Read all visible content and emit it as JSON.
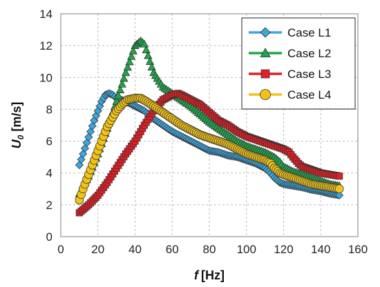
{
  "chart_data": {
    "type": "line",
    "xlabel_var": "f",
    "xlabel_unit": "[Hz]",
    "ylabel_var": "U",
    "ylabel_sub": "0",
    "ylabel_unit": "[m/s]",
    "xlim": [
      0,
      160
    ],
    "ylim": [
      0,
      14
    ],
    "x_ticks": [
      "0",
      "20",
      "40",
      "60",
      "80",
      "100",
      "120",
      "140",
      "160"
    ],
    "y_ticks": [
      "0",
      "2",
      "4",
      "6",
      "8",
      "10",
      "12",
      "14"
    ],
    "grid": true,
    "legend_position": "top-right",
    "series": [
      {
        "name": "Case L1",
        "color": "#3BA7DF",
        "marker": "diamond",
        "points": [
          [
            10,
            4.5
          ],
          [
            12,
            5.2
          ],
          [
            14,
            5.9
          ],
          [
            16,
            6.6
          ],
          [
            18,
            7.3
          ],
          [
            20,
            7.9
          ],
          [
            22,
            8.5
          ],
          [
            24,
            8.9
          ],
          [
            26,
            9.0
          ],
          [
            28,
            8.9
          ],
          [
            30,
            8.7
          ],
          [
            35,
            8.5
          ],
          [
            40,
            8.2
          ],
          [
            45,
            7.9
          ],
          [
            50,
            7.4
          ],
          [
            55,
            7.0
          ],
          [
            60,
            6.6
          ],
          [
            65,
            6.3
          ],
          [
            70,
            6.0
          ],
          [
            75,
            5.7
          ],
          [
            80,
            5.4
          ],
          [
            85,
            5.3
          ],
          [
            90,
            5.1
          ],
          [
            95,
            5.0
          ],
          [
            100,
            4.8
          ],
          [
            105,
            4.6
          ],
          [
            110,
            4.3
          ],
          [
            112,
            4.1
          ],
          [
            115,
            3.7
          ],
          [
            118,
            3.4
          ],
          [
            120,
            3.3
          ],
          [
            125,
            3.2
          ],
          [
            130,
            3.1
          ],
          [
            135,
            2.95
          ],
          [
            140,
            2.85
          ],
          [
            145,
            2.7
          ],
          [
            150,
            2.6
          ]
        ]
      },
      {
        "name": "Case L2",
        "color": "#1FA64A",
        "marker": "triangle",
        "points": [
          [
            10,
            2.7
          ],
          [
            15,
            3.8
          ],
          [
            20,
            5.2
          ],
          [
            25,
            6.8
          ],
          [
            30,
            8.5
          ],
          [
            35,
            10.3
          ],
          [
            40,
            12.0
          ],
          [
            43,
            12.3
          ],
          [
            45,
            12.1
          ],
          [
            48,
            11.0
          ],
          [
            50,
            10.3
          ],
          [
            55,
            9.4
          ],
          [
            60,
            9.0
          ],
          [
            65,
            8.6
          ],
          [
            70,
            8.2
          ],
          [
            75,
            7.7
          ],
          [
            80,
            7.2
          ],
          [
            85,
            6.8
          ],
          [
            90,
            6.4
          ],
          [
            95,
            6.0
          ],
          [
            100,
            5.7
          ],
          [
            105,
            5.5
          ],
          [
            110,
            5.3
          ],
          [
            115,
            5.0
          ],
          [
            118,
            4.7
          ],
          [
            120,
            4.4
          ],
          [
            125,
            4.1
          ],
          [
            130,
            3.9
          ],
          [
            135,
            3.7
          ],
          [
            140,
            3.5
          ],
          [
            145,
            3.3
          ],
          [
            150,
            3.2
          ]
        ]
      },
      {
        "name": "Case L3",
        "color": "#E31E24",
        "marker": "square",
        "points": [
          [
            10,
            1.5
          ],
          [
            15,
            2.0
          ],
          [
            20,
            2.6
          ],
          [
            25,
            3.4
          ],
          [
            30,
            4.3
          ],
          [
            35,
            5.2
          ],
          [
            40,
            6.0
          ],
          [
            45,
            7.0
          ],
          [
            50,
            7.9
          ],
          [
            55,
            8.6
          ],
          [
            60,
            8.9
          ],
          [
            63,
            9.0
          ],
          [
            65,
            8.9
          ],
          [
            70,
            8.6
          ],
          [
            75,
            8.3
          ],
          [
            80,
            7.8
          ],
          [
            85,
            7.3
          ],
          [
            90,
            7.0
          ],
          [
            95,
            6.6
          ],
          [
            100,
            6.3
          ],
          [
            105,
            6.1
          ],
          [
            110,
            5.9
          ],
          [
            115,
            5.7
          ],
          [
            120,
            5.5
          ],
          [
            123,
            5.3
          ],
          [
            125,
            5.0
          ],
          [
            128,
            4.6
          ],
          [
            130,
            4.4
          ],
          [
            135,
            4.2
          ],
          [
            140,
            4.0
          ],
          [
            145,
            3.9
          ],
          [
            150,
            3.8
          ]
        ]
      },
      {
        "name": "Case L4",
        "color": "#F2C317",
        "marker": "circle",
        "points": [
          [
            10,
            2.3
          ],
          [
            12,
            3.0
          ],
          [
            15,
            3.9
          ],
          [
            18,
            4.8
          ],
          [
            20,
            5.4
          ],
          [
            23,
            6.3
          ],
          [
            25,
            6.9
          ],
          [
            28,
            7.5
          ],
          [
            30,
            7.9
          ],
          [
            33,
            8.3
          ],
          [
            36,
            8.6
          ],
          [
            40,
            8.7
          ],
          [
            43,
            8.7
          ],
          [
            46,
            8.5
          ],
          [
            50,
            8.2
          ],
          [
            55,
            7.8
          ],
          [
            60,
            7.4
          ],
          [
            65,
            7.0
          ],
          [
            70,
            6.7
          ],
          [
            75,
            6.4
          ],
          [
            80,
            6.2
          ],
          [
            85,
            6.0
          ],
          [
            90,
            5.8
          ],
          [
            95,
            5.5
          ],
          [
            100,
            5.2
          ],
          [
            105,
            5.0
          ],
          [
            110,
            4.8
          ],
          [
            113,
            4.6
          ],
          [
            115,
            4.3
          ],
          [
            118,
            4.0
          ],
          [
            120,
            3.9
          ],
          [
            125,
            3.7
          ],
          [
            130,
            3.5
          ],
          [
            135,
            3.3
          ],
          [
            140,
            3.2
          ],
          [
            145,
            3.1
          ],
          [
            150,
            3.0
          ]
        ]
      }
    ]
  }
}
